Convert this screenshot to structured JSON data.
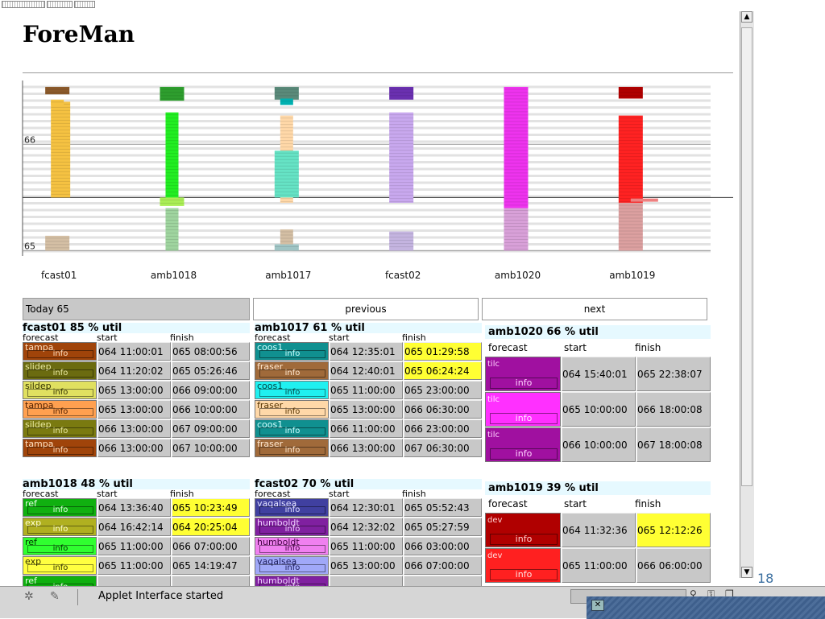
{
  "app": {
    "title": "ForeMan"
  },
  "chart_data": {
    "type": "bar",
    "yticks": [
      {
        "label": "66",
        "value": 66
      },
      {
        "label": "65",
        "value": 65
      }
    ],
    "ylim": [
      64.95,
      66.6
    ],
    "day_boundary": 65.5,
    "categories": [
      "fcast01",
      "amb1018",
      "amb1017",
      "fcast02",
      "amb1020",
      "amb1019"
    ],
    "bars": [
      {
        "machine": "fcast01",
        "start": 66.47,
        "end": 66.54,
        "color": "#8b5a2b",
        "lane": "center"
      },
      {
        "machine": "fcast01",
        "start": 65.5,
        "end": 66.4,
        "color": "#f5c242",
        "lane": "right"
      },
      {
        "machine": "fcast01",
        "start": 66.37,
        "end": 66.42,
        "color": "#f5c242",
        "lane": "left"
      },
      {
        "machine": "fcast01",
        "start": 65.0,
        "end": 65.14,
        "color": "#d4bfa4",
        "lane": "center"
      },
      {
        "machine": "amb1018",
        "start": 66.41,
        "end": 66.54,
        "color": "#2e9e2e",
        "lane": "center"
      },
      {
        "machine": "amb1018",
        "start": 65.48,
        "end": 66.3,
        "color": "#22ee22",
        "lane": "left"
      },
      {
        "machine": "amb1018",
        "start": 65.42,
        "end": 65.5,
        "color": "#aaee55",
        "lane": "center"
      },
      {
        "machine": "amb1018",
        "start": 65.0,
        "end": 65.4,
        "color": "#9fd49f",
        "lane": "left"
      },
      {
        "machine": "amb1017",
        "start": 66.42,
        "end": 66.54,
        "color": "#5a8a7a",
        "lane": "center"
      },
      {
        "machine": "amb1017",
        "start": 66.37,
        "end": 66.43,
        "color": "#00b0b0",
        "lane": "left"
      },
      {
        "machine": "amb1017",
        "start": 65.45,
        "end": 66.27,
        "color": "#ffd8a8",
        "lane": "left"
      },
      {
        "machine": "amb1017",
        "start": 65.5,
        "end": 65.94,
        "color": "#66e3c5",
        "lane": "center"
      },
      {
        "machine": "amb1017",
        "start": 65.0,
        "end": 65.2,
        "color": "#d4bfa4",
        "lane": "left"
      },
      {
        "machine": "amb1017",
        "start": 65.0,
        "end": 65.06,
        "color": "#9fc4c4",
        "lane": "center"
      },
      {
        "machine": "fcast02",
        "start": 66.42,
        "end": 66.54,
        "color": "#6a30b0",
        "lane": "center"
      },
      {
        "machine": "fcast02",
        "start": 65.45,
        "end": 66.3,
        "color": "#c8a8ee",
        "lane": "center"
      },
      {
        "machine": "fcast02",
        "start": 65.0,
        "end": 65.18,
        "color": "#c4b4e0",
        "lane": "center"
      },
      {
        "machine": "amb1020",
        "start": 65.4,
        "end": 66.54,
        "color": "#ee33ee",
        "lane": "center"
      },
      {
        "machine": "amb1020",
        "start": 65.0,
        "end": 65.4,
        "color": "#d8a0d8",
        "lane": "center"
      },
      {
        "machine": "amb1019",
        "start": 66.43,
        "end": 66.54,
        "color": "#b00000",
        "lane": "center"
      },
      {
        "machine": "amb1019",
        "start": 65.45,
        "end": 66.27,
        "color": "#ff2222",
        "lane": "center"
      },
      {
        "machine": "amb1019",
        "start": 65.0,
        "end": 65.45,
        "color": "#dca0a0",
        "lane": "center"
      },
      {
        "machine": "amb1019",
        "start": 65.46,
        "end": 65.49,
        "color": "#ee8080",
        "lane": "tail"
      }
    ]
  },
  "nav": {
    "today": "Today 65",
    "previous": "previous",
    "next": "next"
  },
  "headers": {
    "forecast": "forecast",
    "start": "start",
    "finish": "finish"
  },
  "info_label": "info",
  "panels": [
    {
      "title": "fcast01 85 % util",
      "rows": [
        {
          "forecast": "tampa",
          "start": "064 11:00:01",
          "finish": "065 08:00:56",
          "color": "#a0440a",
          "text_color": "#ffe0c0",
          "finish_highlight": false
        },
        {
          "forecast": "slidep",
          "start": "064 11:20:02",
          "finish": "065 05:26:46",
          "color": "#6b6b10",
          "text_color": "#e8e8a0",
          "finish_highlight": false
        },
        {
          "forecast": "sildep",
          "start": "065 13:00:00",
          "finish": "066 09:00:00",
          "color": "#e0e060",
          "text_color": "#333300",
          "finish_highlight": false
        },
        {
          "forecast": "tampa",
          "start": "065 13:00:00",
          "finish": "066 10:00:00",
          "color": "#ffa050",
          "text_color": "#552200",
          "finish_highlight": false
        },
        {
          "forecast": "sildep",
          "start": "066 13:00:00",
          "finish": "067 09:00:00",
          "color": "#7a7a10",
          "text_color": "#e8e8a0",
          "finish_highlight": false
        },
        {
          "forecast": "tampa",
          "start": "066 13:00:00",
          "finish": "067 10:00:00",
          "color": "#a0440a",
          "text_color": "#ffe0c0",
          "finish_highlight": false
        }
      ]
    },
    {
      "title": "amb1017 61 % util",
      "rows": [
        {
          "forecast": "coos1",
          "start": "064 12:35:01",
          "finish": "065 01:29:58",
          "color": "#109090",
          "text_color": "#d0ffff",
          "finish_highlight": true
        },
        {
          "forecast": "fraser",
          "start": "064 12:40:01",
          "finish": "065 06:24:24",
          "color": "#a06a3a",
          "text_color": "#ffe8d0",
          "finish_highlight": true
        },
        {
          "forecast": "coos1",
          "start": "065 11:00:00",
          "finish": "065 23:00:00",
          "color": "#20f0f0",
          "text_color": "#004444",
          "finish_highlight": false
        },
        {
          "forecast": "fraser",
          "start": "065 13:00:00",
          "finish": "066 06:30:00",
          "color": "#ffd8a8",
          "text_color": "#553300",
          "finish_highlight": false
        },
        {
          "forecast": "coos1",
          "start": "066 11:00:00",
          "finish": "066 23:00:00",
          "color": "#109090",
          "text_color": "#d0ffff",
          "finish_highlight": false
        },
        {
          "forecast": "fraser",
          "start": "066 13:00:00",
          "finish": "067 06:30:00",
          "color": "#a06a3a",
          "text_color": "#ffe8d0",
          "finish_highlight": false
        }
      ]
    },
    {
      "title": "amb1020 66 % util",
      "rows": [
        {
          "forecast": "tilc",
          "start": "064 15:40:01",
          "finish": "065 22:38:07",
          "color": "#a010a0",
          "text_color": "#ffd0ff",
          "finish_highlight": false
        },
        {
          "forecast": "tilc",
          "start": "065 10:00:00",
          "finish": "066 18:00:08",
          "color": "#ff30ff",
          "text_color": "#ffe8ff",
          "finish_highlight": false
        },
        {
          "forecast": "tilc",
          "start": "066 10:00:00",
          "finish": "067 18:00:08",
          "color": "#a010a0",
          "text_color": "#ffd0ff",
          "finish_highlight": false
        }
      ]
    },
    {
      "title": "amb1018 48 % util",
      "rows": [
        {
          "forecast": "ref",
          "start": "064 13:36:40",
          "finish": "065 10:23:49",
          "color": "#10b010",
          "text_color": "#e0ffe0",
          "finish_highlight": true
        },
        {
          "forecast": "exp",
          "start": "064 16:42:14",
          "finish": "064 20:25:04",
          "color": "#b0b020",
          "text_color": "#ffffd0",
          "finish_highlight": true
        },
        {
          "forecast": "ref",
          "start": "065 11:00:00",
          "finish": "066 07:00:00",
          "color": "#30ff30",
          "text_color": "#003300",
          "finish_highlight": false
        },
        {
          "forecast": "exp",
          "start": "065 11:00:00",
          "finish": "065 14:19:47",
          "color": "#ffff40",
          "text_color": "#333300",
          "finish_highlight": false
        },
        {
          "forecast": "ref",
          "start": "",
          "finish": "",
          "color": "#10b010",
          "text_color": "#e0ffe0",
          "finish_highlight": false
        }
      ]
    },
    {
      "title": "fcast02 70 % util",
      "rows": [
        {
          "forecast": "vaqalsea",
          "start": "064 12:30:01",
          "finish": "065 05:52:43",
          "color": "#4040a0",
          "text_color": "#e0e0ff",
          "finish_highlight": false
        },
        {
          "forecast": "humboldt",
          "start": "064 12:32:02",
          "finish": "065 05:27:59",
          "color": "#8020a0",
          "text_color": "#f0d0ff",
          "finish_highlight": false
        },
        {
          "forecast": "humboldt",
          "start": "065 11:00:00",
          "finish": "066 03:00:00",
          "color": "#f080f0",
          "text_color": "#440044",
          "finish_highlight": false
        },
        {
          "forecast": "vaqalsea",
          "start": "065 13:00:00",
          "finish": "066 07:00:00",
          "color": "#a0a8f8",
          "text_color": "#202060",
          "finish_highlight": false
        },
        {
          "forecast": "humboldt",
          "start": "",
          "finish": "",
          "color": "#8020a0",
          "text_color": "#f0d0ff",
          "finish_highlight": false
        }
      ]
    },
    {
      "title": "amb1019 39 % util",
      "rows": [
        {
          "forecast": "dev",
          "start": "064 11:32:36",
          "finish": "065 12:12:26",
          "color": "#b00000",
          "text_color": "#ffd0d0",
          "finish_highlight": true
        },
        {
          "forecast": "dev",
          "start": "065 11:00:00",
          "finish": "066 06:00:00",
          "color": "#ff2020",
          "text_color": "#ffe0e0",
          "finish_highlight": false
        }
      ]
    }
  ],
  "status": {
    "message": "Applet Interface started"
  },
  "page_number": "18"
}
